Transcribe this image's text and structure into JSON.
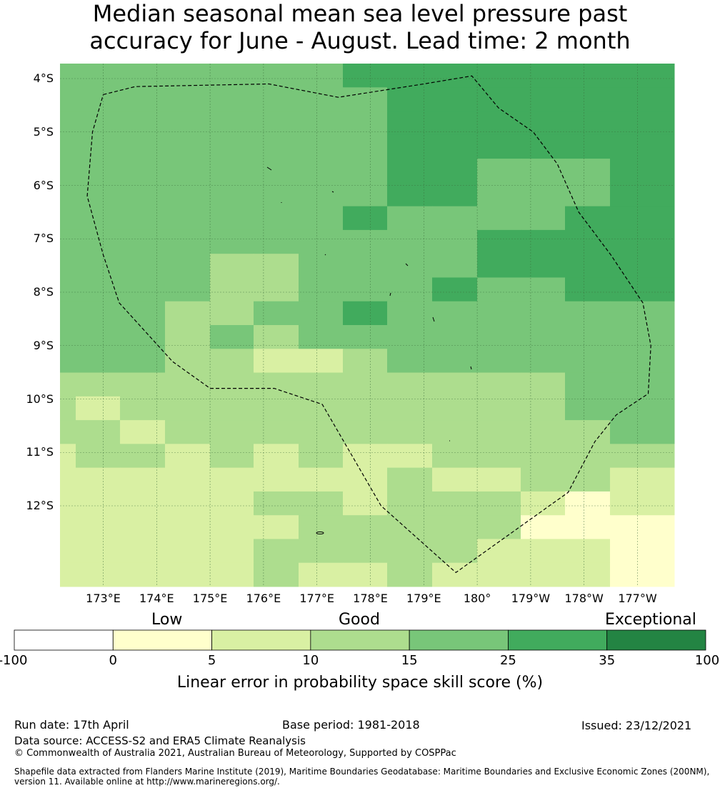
{
  "title_lines": [
    "Median seasonal mean sea level pressure past",
    "accuracy for June - August. Lead time: 2 month"
  ],
  "map": {
    "lat_labels": [
      "4°S",
      "5°S",
      "6°S",
      "7°S",
      "8°S",
      "9°S",
      "10°S",
      "11°S",
      "12°S"
    ],
    "lon_labels": [
      "173°E",
      "174°E",
      "175°E",
      "176°E",
      "177°E",
      "178°E",
      "179°E",
      "180°",
      "179°W",
      "178°W",
      "177°W"
    ],
    "colors": {
      "c0": "#ffffcc",
      "c5": "#d9f0a3",
      "c10": "#addd8e",
      "c15": "#78c679",
      "c25": "#41ab5d",
      "c35": "#238443",
      "white": "#ffffff"
    },
    "grid_rows": [
      [
        "c15",
        "c15",
        "c15",
        "c15",
        "c15",
        "c15",
        "c15",
        "c25",
        "c25",
        "c25",
        "c25",
        "c25",
        "c25",
        "c25"
      ],
      [
        "c15",
        "c15",
        "c15",
        "c15",
        "c15",
        "c15",
        "c15",
        "c15",
        "c25",
        "c25",
        "c25",
        "c25",
        "c25",
        "c25"
      ],
      [
        "c15",
        "c15",
        "c15",
        "c15",
        "c15",
        "c15",
        "c15",
        "c15",
        "c25",
        "c25",
        "c25",
        "c25",
        "c25",
        "c25"
      ],
      [
        "c15",
        "c15",
        "c15",
        "c15",
        "c15",
        "c15",
        "c15",
        "c15",
        "c25",
        "c25",
        "c25",
        "c25",
        "c25",
        "c25"
      ],
      [
        "c15",
        "c15",
        "c15",
        "c15",
        "c15",
        "c15",
        "c15",
        "c15",
        "c25",
        "c25",
        "c15",
        "c15",
        "c15",
        "c25"
      ],
      [
        "c15",
        "c15",
        "c15",
        "c15",
        "c15",
        "c15",
        "c15",
        "c15",
        "c25",
        "c25",
        "c15",
        "c15",
        "c15",
        "c25"
      ],
      [
        "c15",
        "c15",
        "c15",
        "c15",
        "c15",
        "c15",
        "c15",
        "c25",
        "c15",
        "c15",
        "c15",
        "c15",
        "c25",
        "c25"
      ],
      [
        "c15",
        "c15",
        "c15",
        "c15",
        "c15",
        "c15",
        "c15",
        "c15",
        "c15",
        "c15",
        "c25",
        "c25",
        "c25",
        "c25"
      ],
      [
        "c15",
        "c15",
        "c15",
        "c15",
        "c10",
        "c10",
        "c15",
        "c15",
        "c15",
        "c15",
        "c25",
        "c25",
        "c25",
        "c25"
      ],
      [
        "c15",
        "c15",
        "c15",
        "c15",
        "c10",
        "c10",
        "c15",
        "c15",
        "c15",
        "c25",
        "c15",
        "c15",
        "c25",
        "c25"
      ],
      [
        "c15",
        "c15",
        "c15",
        "c10",
        "c10",
        "c15",
        "c15",
        "c25",
        "c15",
        "c15",
        "c15",
        "c15",
        "c15",
        "c15"
      ],
      [
        "c15",
        "c15",
        "c15",
        "c10",
        "c15",
        "c10",
        "c15",
        "c15",
        "c15",
        "c15",
        "c15",
        "c15",
        "c15",
        "c15"
      ],
      [
        "c15",
        "c15",
        "c15",
        "c10",
        "c10",
        "c5",
        "c5",
        "c10",
        "c15",
        "c15",
        "c15",
        "c15",
        "c15",
        "c15"
      ],
      [
        "c10",
        "c10",
        "c10",
        "c10",
        "c10",
        "c10",
        "c10",
        "c10",
        "c10",
        "c10",
        "c10",
        "c10",
        "c15",
        "c15"
      ],
      [
        "c10",
        "c5",
        "c10",
        "c10",
        "c10",
        "c10",
        "c10",
        "c10",
        "c10",
        "c10",
        "c10",
        "c10",
        "c15",
        "c15"
      ],
      [
        "c10",
        "c10",
        "c5",
        "c10",
        "c10",
        "c10",
        "c10",
        "c10",
        "c10",
        "c10",
        "c10",
        "c10",
        "c10",
        "c15"
      ],
      [
        "c5",
        "c10",
        "c10",
        "c5",
        "c10",
        "c5",
        "c10",
        "c5",
        "c5",
        "c10",
        "c10",
        "c10",
        "c10",
        "c10"
      ],
      [
        "c5",
        "c5",
        "c5",
        "c5",
        "c5",
        "c5",
        "c5",
        "c5",
        "c10",
        "c5",
        "c5",
        "c10",
        "c10",
        "c5"
      ],
      [
        "c5",
        "c5",
        "c5",
        "c5",
        "c5",
        "c10",
        "c10",
        "c5",
        "c10",
        "c10",
        "c10",
        "c5",
        "c0",
        "c5"
      ],
      [
        "c5",
        "c5",
        "c5",
        "c5",
        "c5",
        "c5",
        "c10",
        "c10",
        "c10",
        "c10",
        "c10",
        "c0",
        "c0",
        "c0"
      ],
      [
        "c5",
        "c5",
        "c5",
        "c5",
        "c5",
        "c10",
        "c10",
        "c10",
        "c10",
        "c10",
        "c5",
        "c5",
        "c5",
        "c0"
      ],
      [
        "c5",
        "c5",
        "c5",
        "c5",
        "c5",
        "c10",
        "c5",
        "c5",
        "c10",
        "c5",
        "c5",
        "c5",
        "c5",
        "c0"
      ]
    ],
    "eez_boundary_lonlat": [
      [
        173.0,
        -4.3
      ],
      [
        173.6,
        -4.15
      ],
      [
        176.1,
        -4.1
      ],
      [
        177.4,
        -4.35
      ],
      [
        179.0,
        -4.1
      ],
      [
        179.9,
        -3.95
      ],
      [
        180.4,
        -4.55
      ],
      [
        181.05,
        -5.0
      ],
      [
        181.5,
        -5.6
      ],
      [
        181.9,
        -6.5
      ],
      [
        182.5,
        -7.3
      ],
      [
        183.1,
        -8.2
      ],
      [
        183.25,
        -9.0
      ],
      [
        183.2,
        -9.9
      ],
      [
        182.6,
        -10.3
      ],
      [
        182.2,
        -10.8
      ],
      [
        181.7,
        -11.75
      ],
      [
        179.6,
        -13.25
      ],
      [
        178.2,
        -12.0
      ],
      [
        177.1,
        -10.1
      ],
      [
        176.2,
        -9.8
      ],
      [
        175.0,
        -9.8
      ],
      [
        174.3,
        -9.3
      ],
      [
        173.3,
        -8.2
      ],
      [
        173.0,
        -7.3
      ],
      [
        172.7,
        -6.2
      ],
      [
        172.8,
        -5.0
      ],
      [
        173.0,
        -4.3
      ]
    ]
  },
  "colorbar": {
    "categories": [
      "Low",
      "Good",
      "Exceptional"
    ],
    "bins": [
      {
        "from": -100,
        "to": 0,
        "color": "#ffffff"
      },
      {
        "from": 0,
        "to": 5,
        "color": "#ffffcc"
      },
      {
        "from": 5,
        "to": 10,
        "color": "#d9f0a3"
      },
      {
        "from": 10,
        "to": 15,
        "color": "#addd8e"
      },
      {
        "from": 15,
        "to": 25,
        "color": "#78c679"
      },
      {
        "from": 25,
        "to": 35,
        "color": "#41ab5d"
      },
      {
        "from": 35,
        "to": 100,
        "color": "#238443"
      }
    ],
    "ticks": [
      "-100",
      "0",
      "5",
      "10",
      "15",
      "25",
      "35",
      "100"
    ],
    "label": "Linear error in probability space skill score (%)"
  },
  "footer": {
    "run_date": "Run date: 17th April",
    "base_period": "Base period: 1981-2018",
    "issued": "Issued: 23/12/2021",
    "data_source": "Data source: ACCESS-S2 and ERA5 Climate Reanalysis",
    "copyright": "© Commonwealth of Australia 2021, Australian Bureau of Meteorology, Supported by COSPPac",
    "shapefile_line1": "Shapefile data extracted from Flanders Marine Institute (2019), Maritime Boundaries Geodatabase: Maritime Boundaries and Exclusive Economic Zones (200NM),",
    "shapefile_line2": "version 11. Available online at http://www.marineregions.org/."
  }
}
